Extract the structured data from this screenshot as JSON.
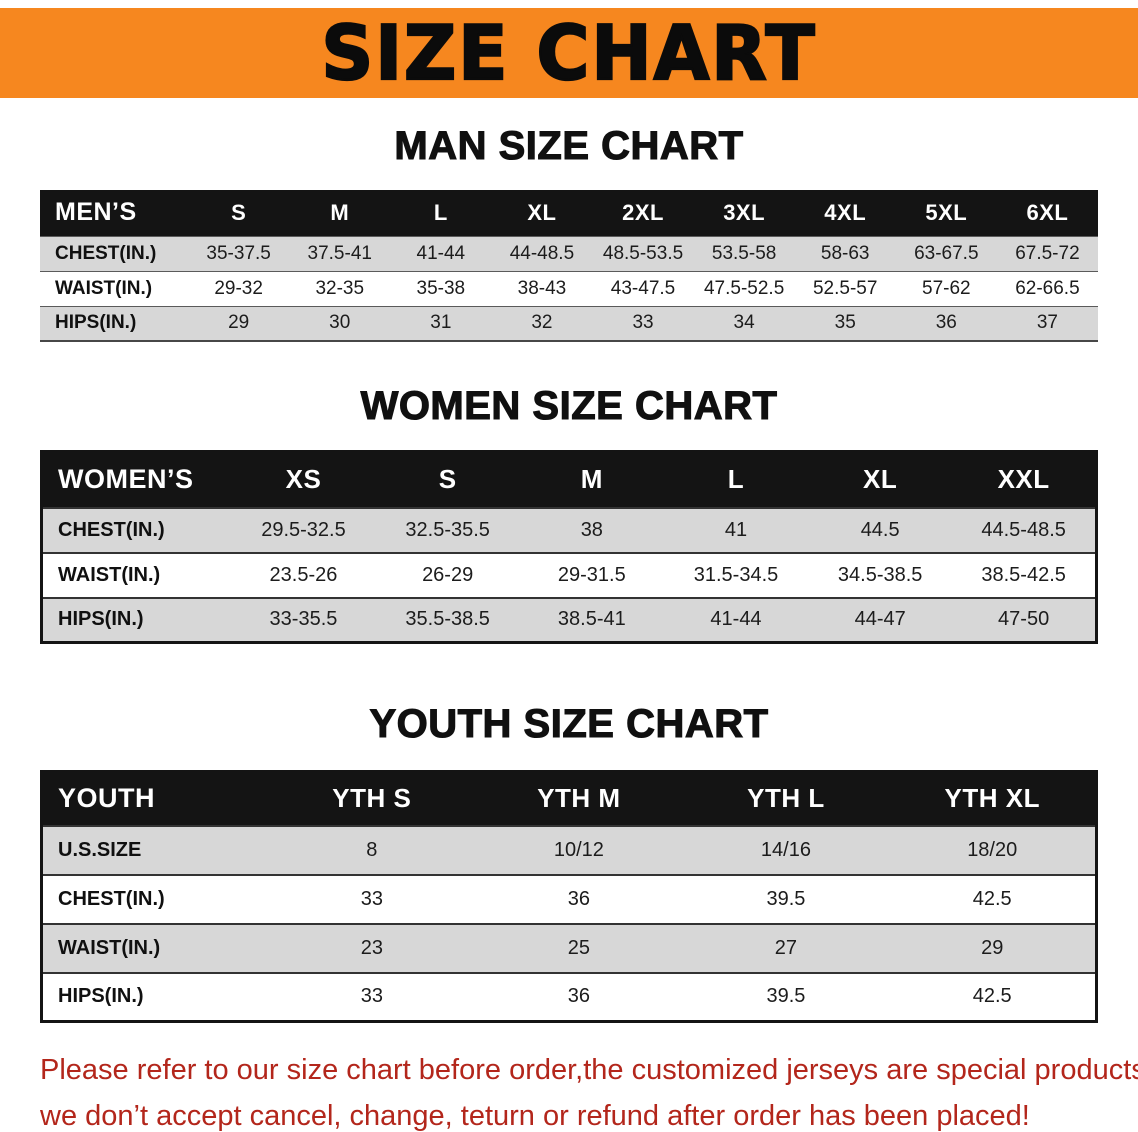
{
  "banner": {
    "title": "SIZE CHART"
  },
  "colors": {
    "banner_bg": "#f6871f",
    "table_header_bg": "#141414",
    "row_shaded_bg": "#d7d7d7",
    "note_color": "#b3261b"
  },
  "sections": {
    "men": {
      "heading": "MAN SIZE CHART",
      "header": [
        "MEN’S",
        "S",
        "M",
        "L",
        "XL",
        "2XL",
        "3XL",
        "4XL",
        "5XL",
        "6XL"
      ],
      "rows": [
        {
          "label": "CHEST(IN.)",
          "values": [
            "35-37.5",
            "37.5-41",
            "41-44",
            "44-48.5",
            "48.5-53.5",
            "53.5-58",
            "58-63",
            "63-67.5",
            "67.5-72"
          ]
        },
        {
          "label": "WAIST(IN.)",
          "values": [
            "29-32",
            "32-35",
            "35-38",
            "38-43",
            "43-47.5",
            "47.5-52.5",
            "52.5-57",
            "57-62",
            "62-66.5"
          ]
        },
        {
          "label": "HIPS(IN.)",
          "values": [
            "29",
            "30",
            "31",
            "32",
            "33",
            "34",
            "35",
            "36",
            "37"
          ]
        }
      ]
    },
    "women": {
      "heading": "WOMEN SIZE CHART",
      "header": [
        "WOMEN’S",
        "XS",
        "S",
        "M",
        "L",
        "XL",
        "XXL"
      ],
      "rows": [
        {
          "label": "CHEST(IN.)",
          "values": [
            "29.5-32.5",
            "32.5-35.5",
            "38",
            "41",
            "44.5",
            "44.5-48.5"
          ]
        },
        {
          "label": "WAIST(IN.)",
          "values": [
            "23.5-26",
            "26-29",
            "29-31.5",
            "31.5-34.5",
            "34.5-38.5",
            "38.5-42.5"
          ]
        },
        {
          "label": "HIPS(IN.)",
          "values": [
            "33-35.5",
            "35.5-38.5",
            "38.5-41",
            "41-44",
            "44-47",
            "47-50"
          ]
        }
      ]
    },
    "youth": {
      "heading": "YOUTH SIZE CHART",
      "header": [
        "YOUTH",
        "YTH S",
        "YTH M",
        "YTH L",
        "YTH XL"
      ],
      "rows": [
        {
          "label": "U.S.SIZE",
          "values": [
            "8",
            "10/12",
            "14/16",
            "18/20"
          ]
        },
        {
          "label": "CHEST(IN.)",
          "values": [
            "33",
            "36",
            "39.5",
            "42.5"
          ]
        },
        {
          "label": "WAIST(IN.)",
          "values": [
            "23",
            "25",
            "27",
            "29"
          ]
        },
        {
          "label": "HIPS(IN.)",
          "values": [
            "33",
            "36",
            "39.5",
            "42.5"
          ]
        }
      ]
    }
  },
  "note": {
    "lines": [
      "Please refer to our size chart before order,the customized jerseys are special products,",
      "we don’t accept cancel, change, teturn or refund after order has been placed!"
    ]
  }
}
